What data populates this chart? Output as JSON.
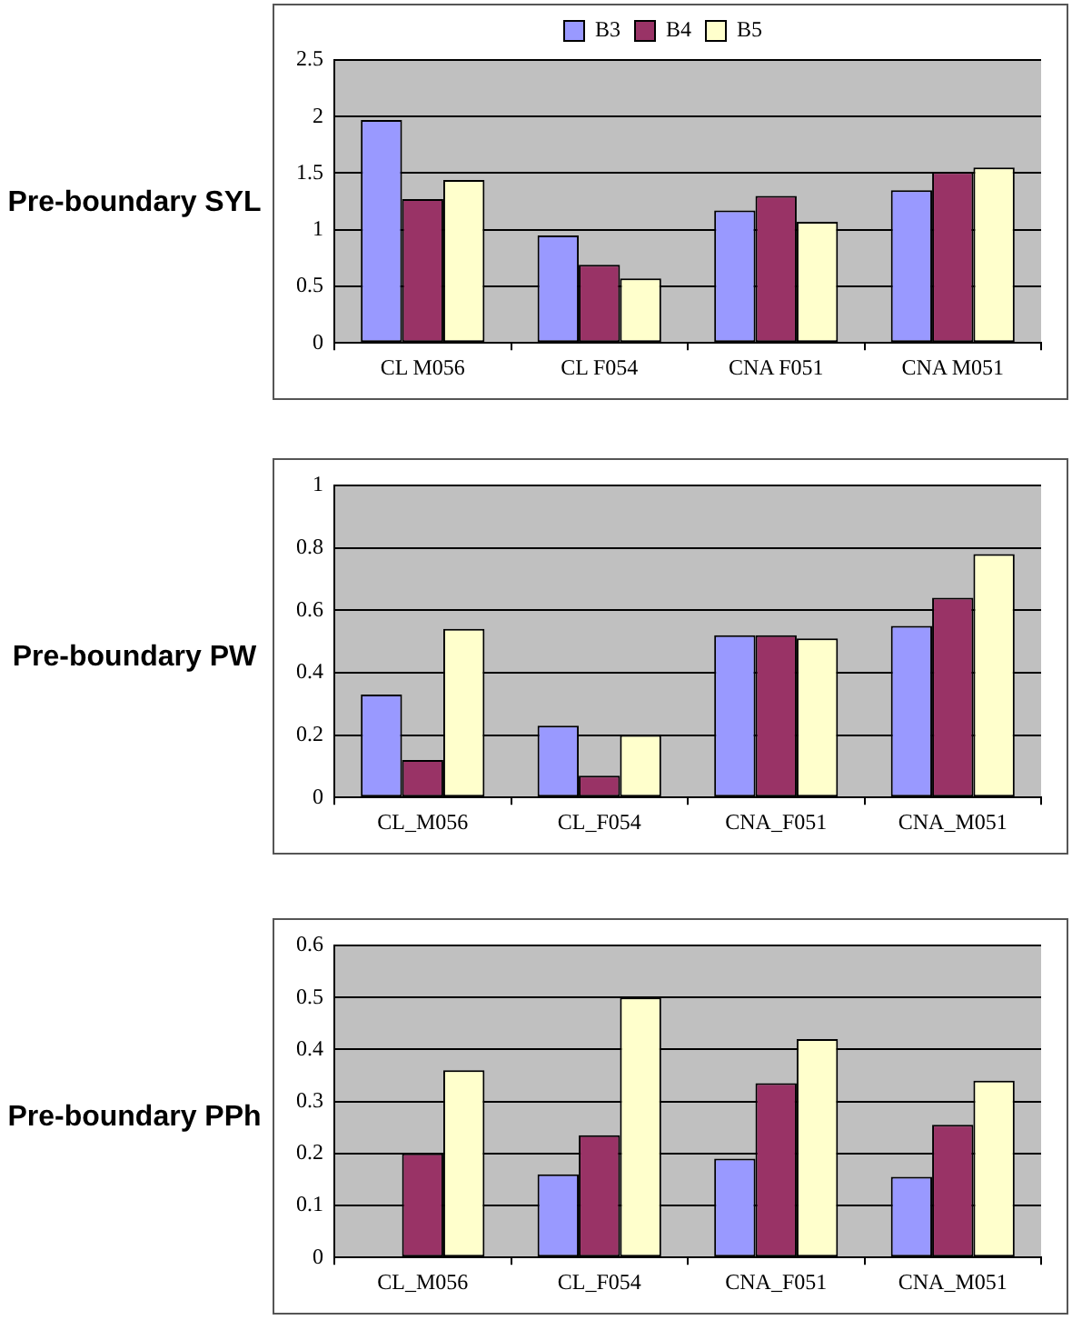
{
  "chart_data": [
    {
      "type": "bar",
      "title": "Pre-boundary SYL",
      "categories": [
        "CL M056",
        "CL F054",
        "CNA F051",
        "CNA M051"
      ],
      "series": [
        {
          "name": "B3",
          "color": "#9999ff",
          "values": [
            1.97,
            0.95,
            1.17,
            1.35
          ]
        },
        {
          "name": "B4",
          "color": "#993366",
          "values": [
            1.27,
            0.69,
            1.3,
            1.51
          ]
        },
        {
          "name": "B5",
          "color": "#ffffcc",
          "values": [
            1.44,
            0.57,
            1.07,
            1.55
          ]
        }
      ],
      "ylim": [
        0,
        2.5
      ],
      "yticks": [
        0,
        0.5,
        1,
        1.5,
        2,
        2.5
      ],
      "grid": "y",
      "legend": "top"
    },
    {
      "type": "bar",
      "title": "Pre-boundary PW",
      "categories": [
        "CL_M056",
        "CL_F054",
        "CNA_F051",
        "CNA_M051"
      ],
      "series": [
        {
          "color": "#9999ff",
          "values": [
            0.33,
            0.23,
            0.52,
            0.55
          ]
        },
        {
          "color": "#993366",
          "values": [
            0.12,
            0.07,
            0.52,
            0.64
          ]
        },
        {
          "color": "#ffffcc",
          "values": [
            0.54,
            0.2,
            0.51,
            0.78
          ]
        }
      ],
      "ylim": [
        0,
        1
      ],
      "yticks": [
        0,
        0.2,
        0.4,
        0.6,
        0.8,
        1
      ],
      "grid": "y"
    },
    {
      "type": "bar",
      "title": "Pre-boundary PPh",
      "categories": [
        "CL_M056",
        "CL_F054",
        "CNA_F051",
        "CNA_M051"
      ],
      "series": [
        {
          "color": "#9999ff",
          "values": [
            null,
            0.16,
            0.19,
            0.155
          ]
        },
        {
          "color": "#993366",
          "values": [
            0.2,
            0.235,
            0.335,
            0.255
          ]
        },
        {
          "color": "#ffffcc",
          "values": [
            0.36,
            0.5,
            0.42,
            0.34
          ]
        }
      ],
      "ylim": [
        0,
        0.6
      ],
      "yticks": [
        0,
        0.1,
        0.2,
        0.3,
        0.4,
        0.5,
        0.6
      ],
      "grid": "y"
    }
  ]
}
